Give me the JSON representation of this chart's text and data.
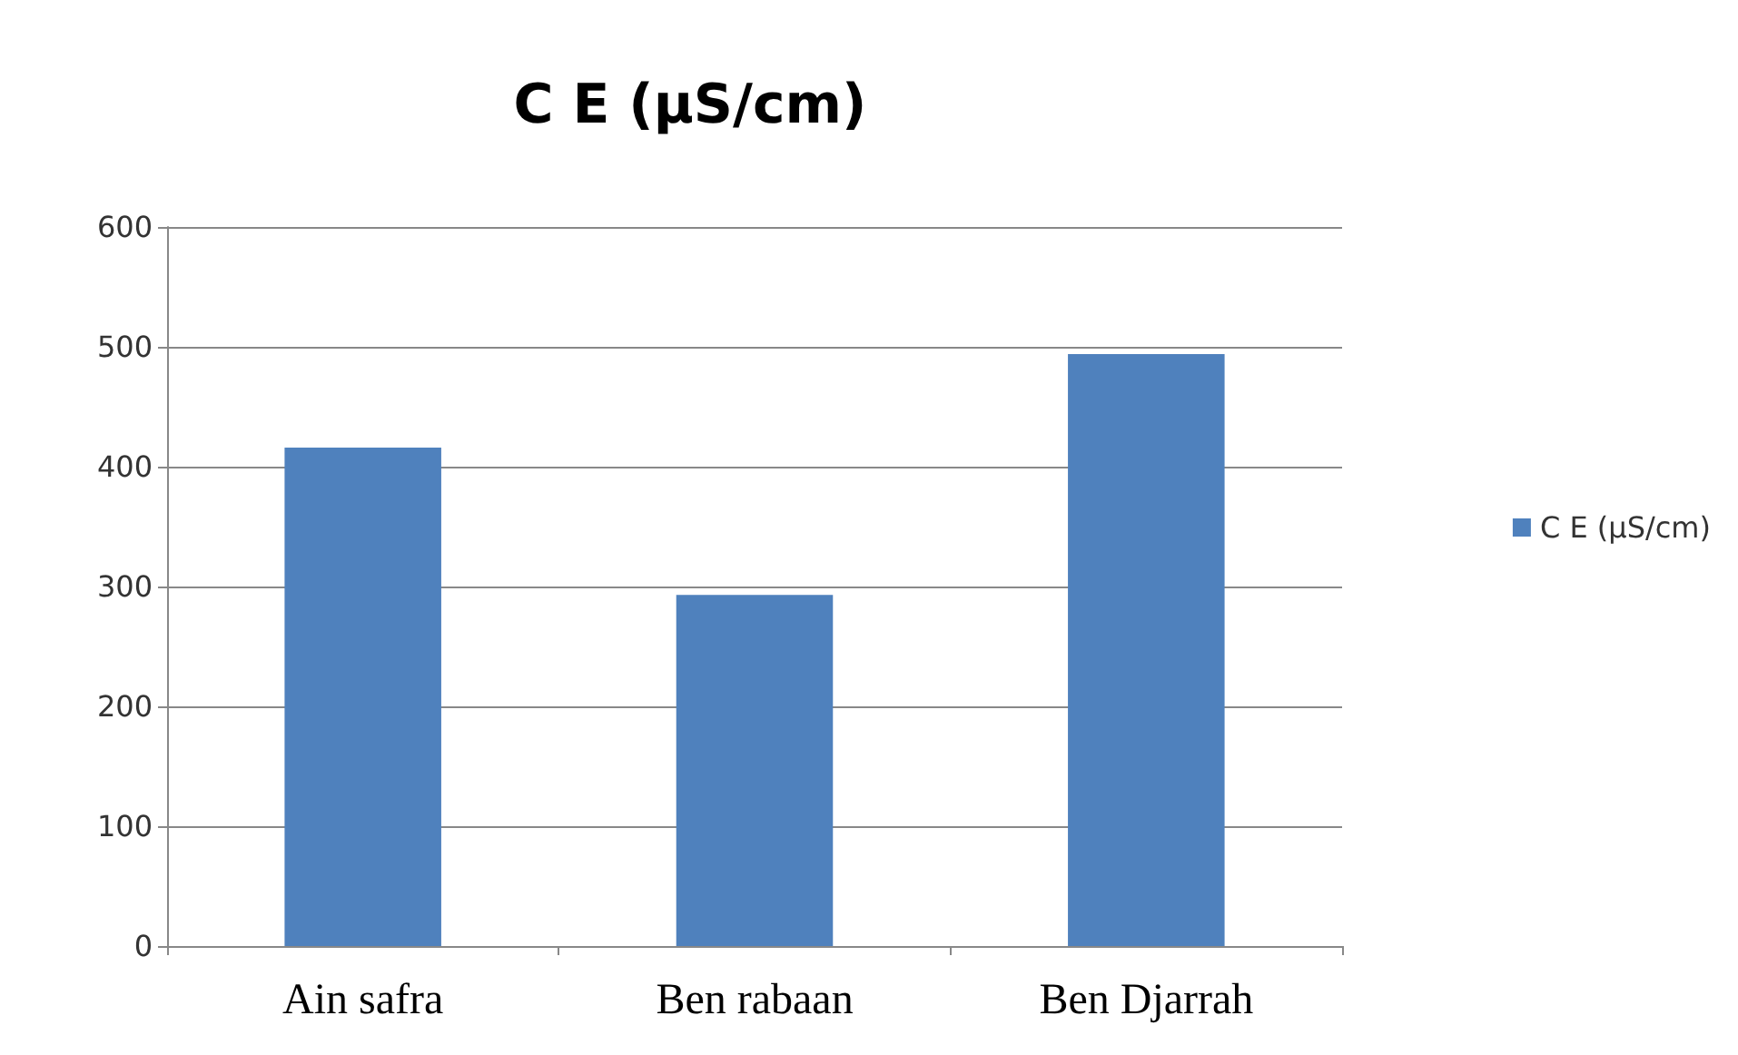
{
  "chart_data": {
    "type": "bar",
    "title": "C E (µS/cm)",
    "categories": [
      "Ain safra",
      "Ben rabaan",
      "Ben Djarrah"
    ],
    "series": [
      {
        "name": "C E (µS/cm)",
        "color": "#4f81bd",
        "values": [
          416,
          293,
          494
        ]
      }
    ],
    "ylim": [
      0,
      600
    ],
    "yticks": [
      0,
      100,
      200,
      300,
      400,
      500,
      600
    ],
    "grid": "y",
    "legend": "right"
  }
}
